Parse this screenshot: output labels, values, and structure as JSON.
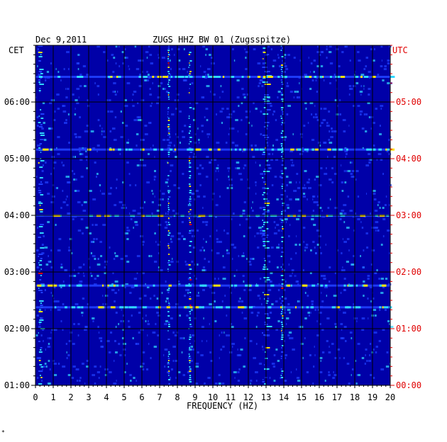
{
  "header": {
    "date": "Dec 9,2011",
    "station": "ZUGS HHZ BW 01 (Zugsspitze)"
  },
  "left_axis": {
    "zone": "CET",
    "ticks": [
      "06:00",
      "05:00",
      "04:00",
      "03:00",
      "02:00",
      "01:00"
    ]
  },
  "right_axis": {
    "zone": "UTC",
    "ticks": [
      "05:00",
      "04:00",
      "03:00",
      "02:00",
      "01:00",
      "00:00"
    ]
  },
  "corner_mark": "*",
  "colors": {
    "background": "#0000a8",
    "band_hi": "#2040ff",
    "cyan": "#30d8ff",
    "yellow": "#ffe000",
    "red": "#e00000",
    "grid": "#000000"
  },
  "chart_data": {
    "type": "heatmap",
    "title": "ZUGS HHZ BW 01 (Zugsspitze)",
    "date": "Dec 9,2011",
    "xlabel": "FREQUENCY (HZ)",
    "x_ticks": [
      0,
      1,
      2,
      3,
      4,
      5,
      6,
      7,
      8,
      9,
      10,
      11,
      12,
      13,
      14,
      15,
      16,
      17,
      18,
      19,
      20
    ],
    "xlim": [
      0,
      20
    ],
    "ylabel_left": "CET",
    "ylabel_right": "UTC",
    "y_range_cet": [
      "01:00",
      "07:00"
    ],
    "y_range_utc": [
      "00:00",
      "06:00"
    ],
    "colormap": "jet",
    "dominant_bands_hz": [
      0.3,
      7.5,
      8.7,
      13.0,
      13.9
    ],
    "strong_rows_cet": [
      "06:27",
      "05:10",
      "04:00",
      "02:46",
      "02:23"
    ]
  }
}
